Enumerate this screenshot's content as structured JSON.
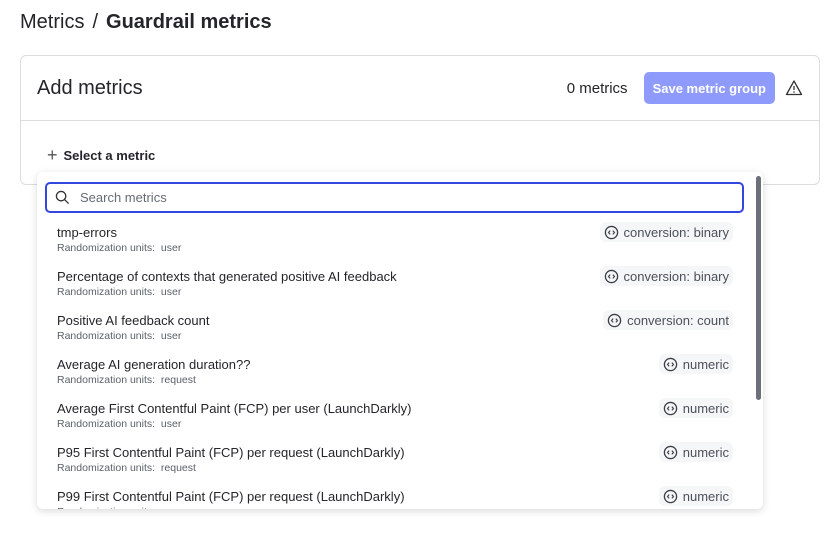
{
  "breadcrumb": {
    "parent": "Metrics",
    "separator": "/",
    "current": "Guardrail metrics"
  },
  "card": {
    "title": "Add metrics",
    "count": "0 metrics",
    "save_label": "Save metric group",
    "select_label": "Select a metric"
  },
  "colors": {
    "accent": "#3446e0",
    "save_button": "#8f9bfc"
  },
  "search": {
    "placeholder": "Search metrics",
    "value": ""
  },
  "units_label": "Randomization units:",
  "metrics": [
    {
      "name": "tmp-errors",
      "units": "user",
      "type": "conversion: binary"
    },
    {
      "name": "Percentage of contexts that generated positive AI feedback",
      "units": "user",
      "type": "conversion: binary"
    },
    {
      "name": "Positive AI feedback count",
      "units": "user",
      "type": "conversion: count"
    },
    {
      "name": "Average AI generation duration??",
      "units": "request",
      "type": "numeric"
    },
    {
      "name": "Average First Contentful Paint (FCP) per user (LaunchDarkly)",
      "units": "user",
      "type": "numeric"
    },
    {
      "name": "P95 First Contentful Paint (FCP) per request (LaunchDarkly)",
      "units": "request",
      "type": "numeric"
    },
    {
      "name": "P99 First Contentful Paint (FCP) per request (LaunchDarkly)",
      "units": "",
      "type": "numeric"
    }
  ]
}
